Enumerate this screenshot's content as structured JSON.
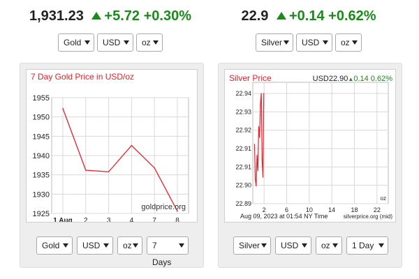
{
  "gold": {
    "quote": {
      "price": "1,931.23",
      "change": "+5.72",
      "percent": "+0.30%"
    },
    "selectors": {
      "metal": "Gold",
      "currency": "USD",
      "unit": "oz"
    },
    "bottom_selectors": {
      "metal": "Gold",
      "currency": "USD",
      "unit": "oz",
      "range": "7 Days"
    },
    "watermark": "goldprice.org"
  },
  "silver": {
    "quote": {
      "price": "22.9",
      "change": "+0.14",
      "percent": "+0.62%"
    },
    "selectors": {
      "metal": "Silver",
      "currency": "USD",
      "unit": "oz"
    },
    "bottom_selectors": {
      "metal": "Silver",
      "currency": "USD",
      "unit": "oz",
      "range": "1 Day"
    },
    "header_price": "USD22.90",
    "header_change": "0.14",
    "header_percent": "0.62%",
    "unit_label": "oz",
    "footer_timestamp": "Aug 09, 2023 at 01:54 NY Time",
    "footer_source": "silverprice.org (mid)"
  },
  "colors": {
    "up": "#1a8a1a",
    "line": "#e8202a",
    "title": "#e8202a",
    "grid": "#d8d8d8"
  },
  "chart_data": [
    {
      "type": "line",
      "title": "7 Day Gold Price in USD/oz",
      "categories": [
        "1 Aug",
        "2",
        "3",
        "4",
        "7",
        "8"
      ],
      "x": [
        0,
        1,
        2,
        3,
        4,
        5
      ],
      "values": [
        1952.2,
        1936.2,
        1935.8,
        1942.6,
        1936.8,
        1925.6
      ],
      "ylim": [
        1925,
        1955
      ],
      "yticks": [
        1925,
        1930,
        1935,
        1940,
        1945,
        1950,
        1955
      ],
      "grid": true
    },
    {
      "type": "line",
      "title": "Silver Price",
      "x_ticks": [
        2,
        6,
        10,
        14,
        18,
        22
      ],
      "xlim": [
        0,
        24
      ],
      "ytick_labels": [
        "22.89",
        "22.90",
        "22.91",
        "22.91",
        "22.92",
        "22.93",
        "22.94"
      ],
      "ylim": [
        22.89,
        22.94
      ],
      "x": [
        0.3,
        0.45,
        0.6,
        0.75,
        0.9,
        1.05,
        1.2,
        1.35,
        1.5,
        1.65,
        1.8,
        1.95
      ],
      "values": [
        22.917,
        22.901,
        22.898,
        22.912,
        22.905,
        22.925,
        22.92,
        22.935,
        22.94,
        22.91,
        22.902,
        22.94
      ],
      "grid": true
    }
  ]
}
